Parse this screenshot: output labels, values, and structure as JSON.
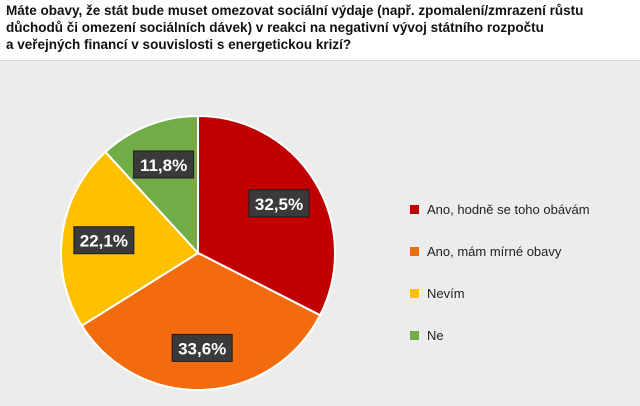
{
  "title_lines": [
    "Máte obavy, že stát bude muset omezovat sociální výdaje (např. zpomalení/zmrazení růstu",
    "důchodů či omezení sociálních dávek) v reakci na negativní vývoj státního rozpočtu",
    "a veřejných financí v souvislosti s energetickou krizí?"
  ],
  "chart_data": {
    "type": "pie",
    "title": "Máte obavy, že stát bude muset omezovat sociální výdaje (např. zpomalení/zmrazení růstu důchodů či omezení sociálních dávek) v reakci na negativní vývoj státního rozpočtu a veřejných financí v souvislosti s energetickou krizí?",
    "categories": [
      "Ano, hodně se toho obávám",
      "Ano, mám mírné obavy",
      "Nevím",
      "Ne"
    ],
    "values": [
      32.5,
      33.6,
      22.1,
      11.8
    ],
    "labels": [
      "32,5%",
      "33,6%",
      "22,1%",
      "11,8%"
    ],
    "colors": [
      "#c00000",
      "#f26b0f",
      "#ffc000",
      "#70ad47"
    ],
    "start_angle_deg": 0,
    "direction": "clockwise",
    "legend": "right",
    "label_style": "dark-boxes"
  }
}
